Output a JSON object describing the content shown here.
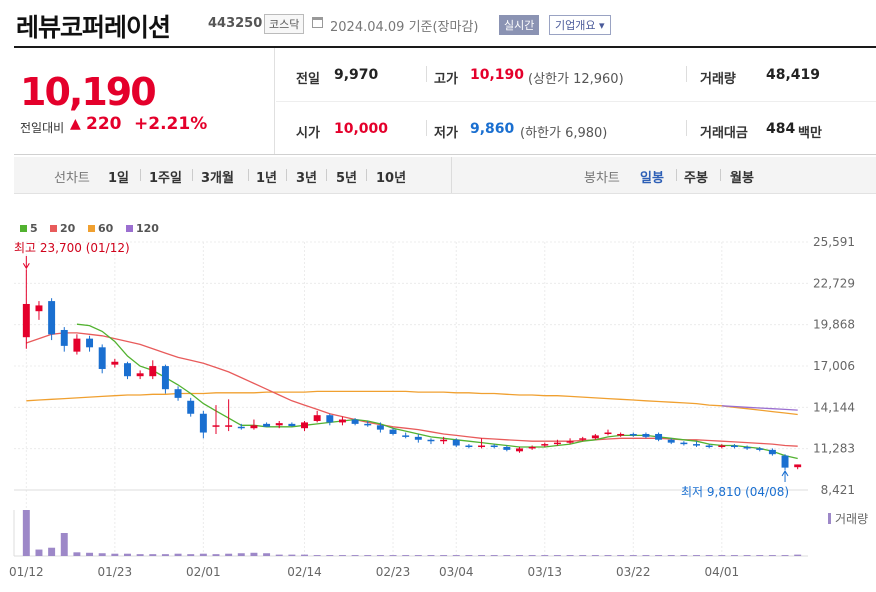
{
  "header": {
    "company_name": "레뷰코퍼레이션",
    "code": "443250",
    "market": "코스닥",
    "date": "2024.04.09 기준(장마감)",
    "realtime_label": "실시간",
    "company_info_label": "기업개요",
    "company_info_arrow": "▾"
  },
  "price": {
    "current": "10,190",
    "change_label": "전일대비",
    "change_arrow": "▲",
    "change": "220",
    "change_pct": "+2.21%"
  },
  "stats": {
    "prev_close_label": "전일",
    "prev_close": "9,970",
    "high_label": "고가",
    "high": "10,190",
    "upper_limit": "(상한가 12,960)",
    "volume_label": "거래량",
    "volume": "48,419",
    "open_label": "시가",
    "open": "10,000",
    "low_label": "저가",
    "low": "9,860",
    "lower_limit": "(하한가 6,980)",
    "value_label": "거래대금",
    "value": "484",
    "value_unit": "백만"
  },
  "periods": {
    "line_chart_label": "선차트",
    "items": [
      "1일",
      "1주일",
      "3개월",
      "1년",
      "3년",
      "5년",
      "10년"
    ],
    "candle_label": "봉차트",
    "candle_items": [
      "일봉",
      "주봉",
      "월봉"
    ],
    "active_candle": "일봉"
  },
  "colors": {
    "up": "#e4002b",
    "down": "#1a6fd0",
    "ma5": "#52b230",
    "ma20": "#e85b5b",
    "ma60": "#f0a030",
    "ma120": "#9b6fd0",
    "volume": "#9d88c8"
  },
  "chart_data": {
    "type": "candlestick",
    "legend": [
      {
        "name": "5",
        "color": "#52b230"
      },
      {
        "name": "20",
        "color": "#e85b5b"
      },
      {
        "name": "60",
        "color": "#f0a030"
      },
      {
        "name": "120",
        "color": "#9b6fd0"
      }
    ],
    "y_ticks": [
      25591,
      22729,
      19868,
      17006,
      14144,
      11283,
      8421
    ],
    "y_tick_labels": [
      "25,591",
      "22,729",
      "19,868",
      "17,006",
      "14,144",
      "11,283",
      "8,421"
    ],
    "ylim": [
      8421,
      25591
    ],
    "x_labels": [
      "01/12",
      "01/23",
      "02/01",
      "02/14",
      "02/23",
      "03/04",
      "03/13",
      "03/22",
      "04/01"
    ],
    "x_label_index": [
      0,
      7,
      14,
      22,
      29,
      34,
      41,
      48,
      55
    ],
    "volume_label": "거래량",
    "max_annotation": {
      "text": "최고 23,700 (01/12)",
      "index": 0,
      "value": 23700
    },
    "min_annotation": {
      "text": "최저 9,810 (04/08)",
      "index": 60,
      "value": 9810
    },
    "candles": [
      {
        "o": 19000,
        "h": 23700,
        "l": 18200,
        "c": 21300
      },
      {
        "o": 20800,
        "h": 21500,
        "l": 20200,
        "c": 21200
      },
      {
        "o": 21500,
        "h": 21700,
        "l": 18800,
        "c": 19200
      },
      {
        "o": 19500,
        "h": 19700,
        "l": 18000,
        "c": 18400
      },
      {
        "o": 18000,
        "h": 19200,
        "l": 17800,
        "c": 18900
      },
      {
        "o": 18900,
        "h": 19100,
        "l": 18000,
        "c": 18300
      },
      {
        "o": 18300,
        "h": 18500,
        "l": 16500,
        "c": 16800
      },
      {
        "o": 17100,
        "h": 17500,
        "l": 16900,
        "c": 17300
      },
      {
        "o": 17200,
        "h": 17300,
        "l": 16100,
        "c": 16300
      },
      {
        "o": 16300,
        "h": 16700,
        "l": 16100,
        "c": 16500
      },
      {
        "o": 16300,
        "h": 17400,
        "l": 16100,
        "c": 17000
      },
      {
        "o": 17000,
        "h": 17100,
        "l": 15100,
        "c": 15400
      },
      {
        "o": 15400,
        "h": 15600,
        "l": 14600,
        "c": 14800
      },
      {
        "o": 14600,
        "h": 14800,
        "l": 13500,
        "c": 13700
      },
      {
        "o": 13700,
        "h": 13900,
        "l": 12000,
        "c": 12400
      },
      {
        "o": 12800,
        "h": 14300,
        "l": 12300,
        "c": 12900
      },
      {
        "o": 12800,
        "h": 14700,
        "l": 12500,
        "c": 12900
      },
      {
        "o": 12800,
        "h": 13000,
        "l": 12600,
        "c": 12700
      },
      {
        "o": 12700,
        "h": 13300,
        "l": 12600,
        "c": 12900
      },
      {
        "o": 13000,
        "h": 13100,
        "l": 12800,
        "c": 12800
      },
      {
        "o": 12900,
        "h": 13200,
        "l": 12700,
        "c": 13050
      },
      {
        "o": 13000,
        "h": 13100,
        "l": 12800,
        "c": 12850
      },
      {
        "o": 12700,
        "h": 13200,
        "l": 12500,
        "c": 13100
      },
      {
        "o": 13200,
        "h": 13900,
        "l": 13100,
        "c": 13600
      },
      {
        "o": 13600,
        "h": 13700,
        "l": 12900,
        "c": 13100
      },
      {
        "o": 13100,
        "h": 13500,
        "l": 12900,
        "c": 13300
      },
      {
        "o": 13300,
        "h": 13400,
        "l": 12900,
        "c": 13000
      },
      {
        "o": 13000,
        "h": 13200,
        "l": 12800,
        "c": 12900
      },
      {
        "o": 12900,
        "h": 13100,
        "l": 12400,
        "c": 12600
      },
      {
        "o": 12600,
        "h": 12700,
        "l": 12200,
        "c": 12300
      },
      {
        "o": 12200,
        "h": 12400,
        "l": 12000,
        "c": 12100
      },
      {
        "o": 12100,
        "h": 12300,
        "l": 11700,
        "c": 11900
      },
      {
        "o": 11900,
        "h": 12000,
        "l": 11600,
        "c": 11800
      },
      {
        "o": 11800,
        "h": 12100,
        "l": 11600,
        "c": 11900
      },
      {
        "o": 11900,
        "h": 12000,
        "l": 11400,
        "c": 11500
      },
      {
        "o": 11500,
        "h": 11600,
        "l": 11300,
        "c": 11400
      },
      {
        "o": 11400,
        "h": 12000,
        "l": 11300,
        "c": 11500
      },
      {
        "o": 11500,
        "h": 11600,
        "l": 11300,
        "c": 11400
      },
      {
        "o": 11400,
        "h": 11500,
        "l": 11100,
        "c": 11200
      },
      {
        "o": 11100,
        "h": 11400,
        "l": 11000,
        "c": 11300
      },
      {
        "o": 11300,
        "h": 11500,
        "l": 11200,
        "c": 11400
      },
      {
        "o": 11500,
        "h": 11700,
        "l": 11400,
        "c": 11600
      },
      {
        "o": 11600,
        "h": 11900,
        "l": 11500,
        "c": 11700
      },
      {
        "o": 11700,
        "h": 12000,
        "l": 11600,
        "c": 11800
      },
      {
        "o": 11900,
        "h": 12100,
        "l": 11800,
        "c": 12000
      },
      {
        "o": 12000,
        "h": 12300,
        "l": 11900,
        "c": 12200
      },
      {
        "o": 12300,
        "h": 12600,
        "l": 12200,
        "c": 12400
      },
      {
        "o": 12300,
        "h": 12400,
        "l": 12100,
        "c": 12300
      },
      {
        "o": 12300,
        "h": 12400,
        "l": 12100,
        "c": 12200
      },
      {
        "o": 12300,
        "h": 12400,
        "l": 12000,
        "c": 12100
      },
      {
        "o": 12300,
        "h": 12400,
        "l": 11800,
        "c": 11900
      },
      {
        "o": 11900,
        "h": 12000,
        "l": 11600,
        "c": 11700
      },
      {
        "o": 11700,
        "h": 11800,
        "l": 11500,
        "c": 11600
      },
      {
        "o": 11600,
        "h": 11800,
        "l": 11400,
        "c": 11500
      },
      {
        "o": 11500,
        "h": 11600,
        "l": 11300,
        "c": 11400
      },
      {
        "o": 11400,
        "h": 11600,
        "l": 11300,
        "c": 11500
      },
      {
        "o": 11500,
        "h": 11600,
        "l": 11300,
        "c": 11400
      },
      {
        "o": 11400,
        "h": 11500,
        "l": 11200,
        "c": 11300
      },
      {
        "o": 11300,
        "h": 11400,
        "l": 11100,
        "c": 11200
      },
      {
        "o": 11200,
        "h": 11300,
        "l": 10800,
        "c": 10900
      },
      {
        "o": 10800,
        "h": 10900,
        "l": 9810,
        "c": 9970
      },
      {
        "o": 10000,
        "h": 10190,
        "l": 9860,
        "c": 10190
      }
    ],
    "ma5": [
      null,
      null,
      null,
      null,
      19900,
      19800,
      19400,
      18700,
      17700,
      17000,
      16700,
      16200,
      15700,
      15100,
      14400,
      13900,
      13400,
      12900,
      12900,
      12800,
      12800,
      12800,
      12900,
      13000,
      13100,
      13200,
      13300,
      13200,
      13000,
      12700,
      12500,
      12300,
      12100,
      12000,
      11900,
      11800,
      11700,
      11600,
      11500,
      11400,
      11400,
      11400,
      11500,
      11600,
      11800,
      11900,
      12100,
      12200,
      12200,
      12200,
      12100,
      12000,
      11900,
      11800,
      11600,
      11500,
      11500,
      11400,
      11300,
      11100,
      10800,
      10600
    ],
    "ma20": [
      18600,
      18900,
      19200,
      19300,
      19300,
      19200,
      19100,
      18900,
      18700,
      18500,
      18200,
      17900,
      17600,
      17400,
      17200,
      16900,
      16600,
      16200,
      15800,
      15400,
      15000,
      14600,
      14300,
      14000,
      13700,
      13500,
      13300,
      13100,
      12950,
      12800,
      12700,
      12600,
      12450,
      12300,
      12200,
      12100,
      12000,
      11950,
      11900,
      11850,
      11800,
      11800,
      11800,
      11800,
      11850,
      11900,
      11950,
      12000,
      12000,
      12000,
      12000,
      11950,
      11900,
      11900,
      11850,
      11800,
      11750,
      11700,
      11650,
      11600,
      11500,
      11450
    ],
    "ma60": [
      14600,
      14650,
      14700,
      14750,
      14800,
      14850,
      14900,
      14950,
      15000,
      15000,
      15050,
      15050,
      15100,
      15100,
      15100,
      15150,
      15150,
      15150,
      15150,
      15200,
      15200,
      15200,
      15200,
      15250,
      15250,
      15250,
      15250,
      15250,
      15250,
      15250,
      15250,
      15200,
      15200,
      15200,
      15150,
      15150,
      15100,
      15100,
      15050,
      15000,
      15000,
      14950,
      14950,
      14900,
      14850,
      14800,
      14750,
      14700,
      14650,
      14600,
      14550,
      14500,
      14450,
      14400,
      14300,
      14250,
      14150,
      14050,
      13950,
      13850,
      13750,
      13650
    ],
    "ma120": [
      null,
      null,
      null,
      null,
      null,
      null,
      null,
      null,
      null,
      null,
      null,
      null,
      null,
      null,
      null,
      null,
      null,
      null,
      null,
      null,
      null,
      null,
      null,
      null,
      null,
      null,
      null,
      null,
      null,
      null,
      null,
      null,
      null,
      null,
      null,
      null,
      null,
      null,
      null,
      null,
      null,
      null,
      null,
      null,
      null,
      null,
      null,
      null,
      null,
      null,
      null,
      null,
      null,
      null,
      null,
      14250,
      14200,
      14150,
      14100,
      14050,
      14000,
      13950
    ],
    "volume": [
      100,
      14,
      18,
      50,
      8,
      7,
      6,
      5,
      5,
      4,
      4,
      4,
      5,
      4,
      5,
      4,
      5,
      6,
      7,
      6,
      3,
      3,
      3,
      2,
      2,
      2,
      2,
      2,
      2,
      2,
      2,
      2,
      2,
      2,
      2,
      2,
      2,
      2,
      2,
      2,
      2,
      2,
      2,
      2,
      2,
      2,
      2,
      2,
      2,
      2,
      2,
      2,
      2,
      2,
      2,
      2,
      2,
      2,
      2,
      2,
      2,
      3
    ]
  }
}
